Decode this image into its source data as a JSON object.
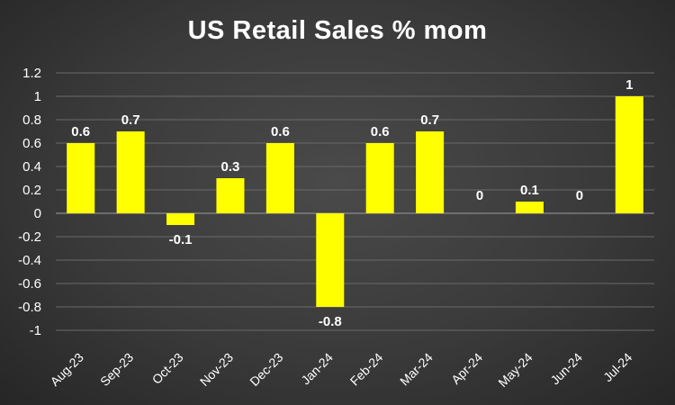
{
  "chart_data": {
    "type": "bar",
    "title": "US Retail Sales % mom",
    "xlabel": "",
    "ylabel": "",
    "categories": [
      "Aug-23",
      "Sep-23",
      "Oct-23",
      "Nov-23",
      "Dec-23",
      "Jan-24",
      "Feb-24",
      "Mar-24",
      "Apr-24",
      "May-24",
      "Jun-24",
      "Jul-24"
    ],
    "values": [
      0.6,
      0.7,
      -0.1,
      0.3,
      0.6,
      -0.8,
      0.6,
      0.7,
      0,
      0.1,
      0,
      1
    ],
    "data_labels": [
      "0.6",
      "0.7",
      "-0.1",
      "0.3",
      "0.6",
      "-0.8",
      "0.6",
      "0.7",
      "0",
      "0.1",
      "0",
      "1"
    ],
    "yticks": [
      1.2,
      1,
      0.8,
      0.6,
      0.4,
      0.2,
      0,
      -0.2,
      -0.4,
      -0.6,
      -0.8,
      -1
    ],
    "ytick_labels": [
      "1.2",
      "1",
      "0.8",
      "0.6",
      "0.4",
      "0.2",
      "0",
      "-0.2",
      "-0.4",
      "-0.6",
      "-0.8",
      "-1"
    ],
    "ylim": [
      -1,
      1.2
    ],
    "grid": true,
    "legend": false,
    "bar_color": "#ffff00",
    "background_color": "#3a3a3a",
    "text_color": "#ffffff"
  }
}
